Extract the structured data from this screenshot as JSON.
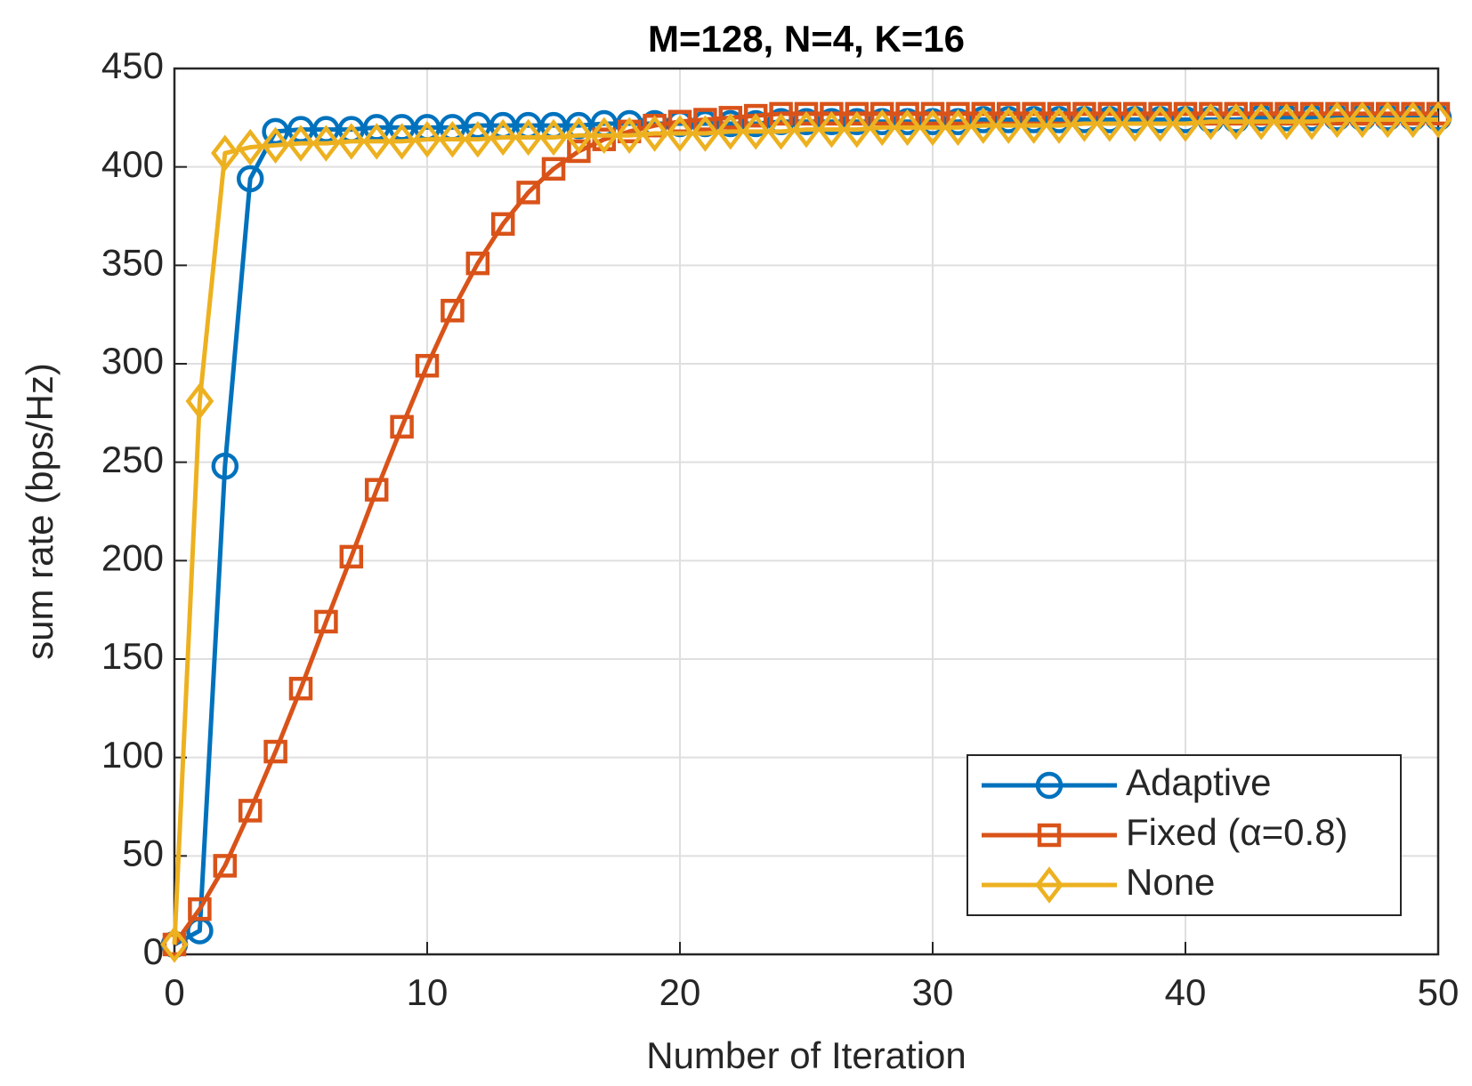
{
  "chart_data": {
    "type": "line",
    "title": "M=128, N=4, K=16",
    "x_label": "Number of Iteration",
    "y_label": "sum rate (bps/Hz)",
    "x": [
      0,
      1,
      2,
      3,
      4,
      5,
      6,
      7,
      8,
      9,
      10,
      11,
      12,
      13,
      14,
      15,
      16,
      17,
      18,
      19,
      20,
      21,
      22,
      23,
      24,
      25,
      26,
      27,
      28,
      29,
      30,
      31,
      32,
      33,
      34,
      35,
      36,
      37,
      38,
      39,
      40,
      41,
      42,
      43,
      44,
      45,
      46,
      47,
      48,
      49,
      50
    ],
    "series": [
      {
        "name": "Adaptive",
        "color": "#0072BD",
        "marker": "circle",
        "values": [
          5,
          12,
          248,
          394,
          418,
          419,
          419,
          419,
          420,
          420,
          420,
          420,
          421,
          421,
          421,
          421,
          421,
          422,
          422,
          422,
          422,
          422,
          422,
          422,
          423,
          423,
          423,
          423,
          423,
          423,
          423,
          423,
          424,
          424,
          424,
          424,
          424,
          424,
          424,
          424,
          424,
          424,
          424,
          425,
          425,
          425,
          425,
          425,
          425,
          425,
          425
        ]
      },
      {
        "name": "Fixed  (α=0.8)",
        "color": "#D95319",
        "marker": "square",
        "values": [
          5,
          23,
          45,
          73,
          103,
          135,
          169,
          202,
          236,
          268,
          299,
          327,
          351,
          371,
          387,
          399,
          408,
          414,
          418,
          421,
          423,
          424,
          425,
          426,
          427,
          427,
          427,
          427,
          427,
          427,
          427,
          427,
          427,
          427,
          427,
          427,
          427,
          427,
          427,
          427,
          427,
          427,
          427,
          427,
          427,
          427,
          427,
          427,
          427,
          427,
          427
        ]
      },
      {
        "name": "None",
        "color": "#EDB120",
        "marker": "diamond",
        "values": [
          5,
          281,
          407,
          410,
          411,
          412,
          412,
          413,
          413,
          413,
          414,
          414,
          414,
          415,
          415,
          415,
          416,
          416,
          416,
          417,
          417,
          417,
          418,
          418,
          418,
          419,
          419,
          419,
          420,
          420,
          420,
          420,
          421,
          421,
          421,
          421,
          422,
          422,
          422,
          422,
          422,
          423,
          423,
          423,
          423,
          423,
          424,
          424,
          424,
          424,
          424
        ]
      }
    ],
    "xlim": [
      0,
      50
    ],
    "xticks": [
      0,
      10,
      20,
      30,
      40,
      50
    ],
    "ylim": [
      0,
      450
    ],
    "yticks": [
      0,
      50,
      100,
      150,
      200,
      250,
      300,
      350,
      400,
      450
    ],
    "grid": true,
    "legend": "lower right"
  }
}
